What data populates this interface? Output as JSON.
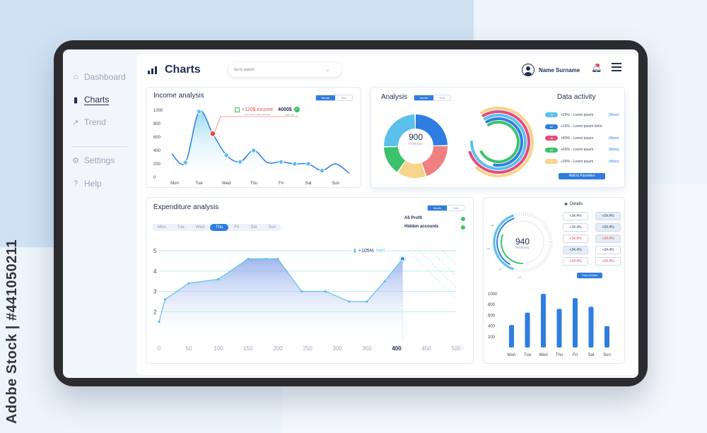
{
  "watermark": "Adobe Stock | #441050211",
  "sidebar": {
    "items": [
      {
        "label": "Dashboard",
        "icon": "home-icon"
      },
      {
        "label": "Charts",
        "icon": "bar-chart-icon"
      },
      {
        "label": "Trend",
        "icon": "trend-icon"
      },
      {
        "label": "Settings",
        "icon": "gear-icon"
      },
      {
        "label": "Help",
        "icon": "help-icon"
      }
    ]
  },
  "header": {
    "title": "Charts",
    "search_placeholder": "Go to search",
    "user_name": "Name Surname"
  },
  "income": {
    "title": "Income analysis",
    "toggle": [
      "Month",
      "Year"
    ],
    "annotation_value": "+120$ income",
    "annotation_sub": "Lorem Ipsum Dolor Sit Amet",
    "annotation_total": "4000$",
    "annotation_pct": "+4% 10",
    "colors": {
      "line": "#2f7de1",
      "marker": "#e64b4b",
      "check": "#3cc26a"
    }
  },
  "analysis": {
    "title": "Analysis",
    "toggle": [
      "Month",
      "Year"
    ],
    "donut_value": "900",
    "donut_label": "February"
  },
  "activity": {
    "title": "Data activity",
    "rows": [
      {
        "pill": "70",
        "color": "#5bc0eb",
        "text": "+20% - Lorem ipsum",
        "more": "(More)"
      },
      {
        "pill": "50",
        "color": "#2f7de1",
        "text": "+10% - Lorem ipsum dolor",
        "more": ""
      },
      {
        "pill": "40",
        "color": "#e64b7d",
        "text": "+40% - Lorem ipsum",
        "more": "(More)"
      },
      {
        "pill": "60",
        "color": "#3cc26a",
        "text": "+60% - Lorem ipsum",
        "more": "(More)"
      },
      {
        "pill": "70",
        "color": "#f7d58a",
        "text": "+30% - Lorem ipsum",
        "more": "(More)"
      }
    ],
    "button": "Add to Favorites"
  },
  "expenditure": {
    "title": "Expenditure analysis",
    "toggle": [
      "Month",
      "Year"
    ],
    "days": [
      "Mon",
      "Tue",
      "Wed",
      "Thu",
      "Fri",
      "Sat",
      "Sun"
    ],
    "active_day": "Thu",
    "legend": [
      "All Profit",
      "Hidden accounts"
    ],
    "marker_value": "+105%",
    "marker_tag": "(high)"
  },
  "details": {
    "title": "Details",
    "gauge_value": "940",
    "gauge_label": "February",
    "gauge_ticks": [
      "50",
      "40",
      "30",
      "20",
      "10"
    ],
    "boxes": [
      {
        "text": "+34.4%",
        "style": "plain"
      },
      {
        "text": "+34.4%",
        "style": "blue"
      },
      {
        "text": "+34.4%",
        "style": "plain"
      },
      {
        "text": "+34.4%",
        "style": "blue"
      },
      {
        "text": "+34.4%",
        "style": "red"
      },
      {
        "text": "+34.4%",
        "style": "blue-red"
      },
      {
        "text": "+34.4%",
        "style": "blue"
      },
      {
        "text": "+34.4%",
        "style": "plain"
      },
      {
        "text": "+34.4%",
        "style": "red"
      },
      {
        "text": "+34.4%",
        "style": "red"
      }
    ],
    "button": "View Details"
  },
  "chart_data": [
    {
      "type": "line",
      "title": "Income analysis",
      "categories": [
        "Mon",
        "Tue",
        "Wed",
        "Thu",
        "Fri",
        "Sat",
        "Sun"
      ],
      "x": [
        0,
        0.5,
        1,
        1.5,
        2,
        2.5,
        3,
        3.5,
        4,
        4.5,
        5,
        5.5,
        6,
        6.5
      ],
      "values": [
        350,
        220,
        980,
        650,
        330,
        230,
        400,
        220,
        230,
        200,
        200,
        100,
        200,
        60
      ],
      "ylim": [
        0,
        1000
      ],
      "yticks": [
        "1000",
        "800",
        "600",
        "400",
        "200",
        "0"
      ]
    },
    {
      "type": "pie",
      "title": "Analysis",
      "values": [
        25,
        20,
        15,
        15,
        25
      ],
      "colors": [
        "#2f7de1",
        "#f08080",
        "#f7d58a",
        "#3cc26a",
        "#5bc0eb"
      ]
    },
    {
      "type": "area",
      "title": "Expenditure analysis",
      "x": [
        0,
        10,
        50,
        100,
        150,
        180,
        200,
        240,
        280,
        320,
        350,
        380,
        410
      ],
      "values": [
        1.5,
        2.6,
        3.4,
        3.6,
        4.6,
        4.6,
        4.6,
        3.0,
        3.0,
        2.5,
        2.5,
        3.5,
        4.6
      ],
      "xticks": [
        "0",
        "50",
        "100",
        "150",
        "200",
        "250",
        "300",
        "350",
        "400",
        "450",
        "500"
      ],
      "yticks": [
        "5",
        "4",
        "3",
        "2"
      ],
      "xlim": [
        0,
        500
      ],
      "ylim": [
        1,
        5
      ]
    },
    {
      "type": "bar",
      "title": "Details",
      "categories": [
        "Mon",
        "Tue",
        "Wed",
        "Thu",
        "Fri",
        "Sat",
        "Sun"
      ],
      "values": [
        420,
        650,
        1000,
        720,
        920,
        760,
        400
      ],
      "ylim": [
        0,
        1000
      ],
      "yticks": [
        "1000",
        "800",
        "600",
        "400",
        "200"
      ]
    }
  ]
}
